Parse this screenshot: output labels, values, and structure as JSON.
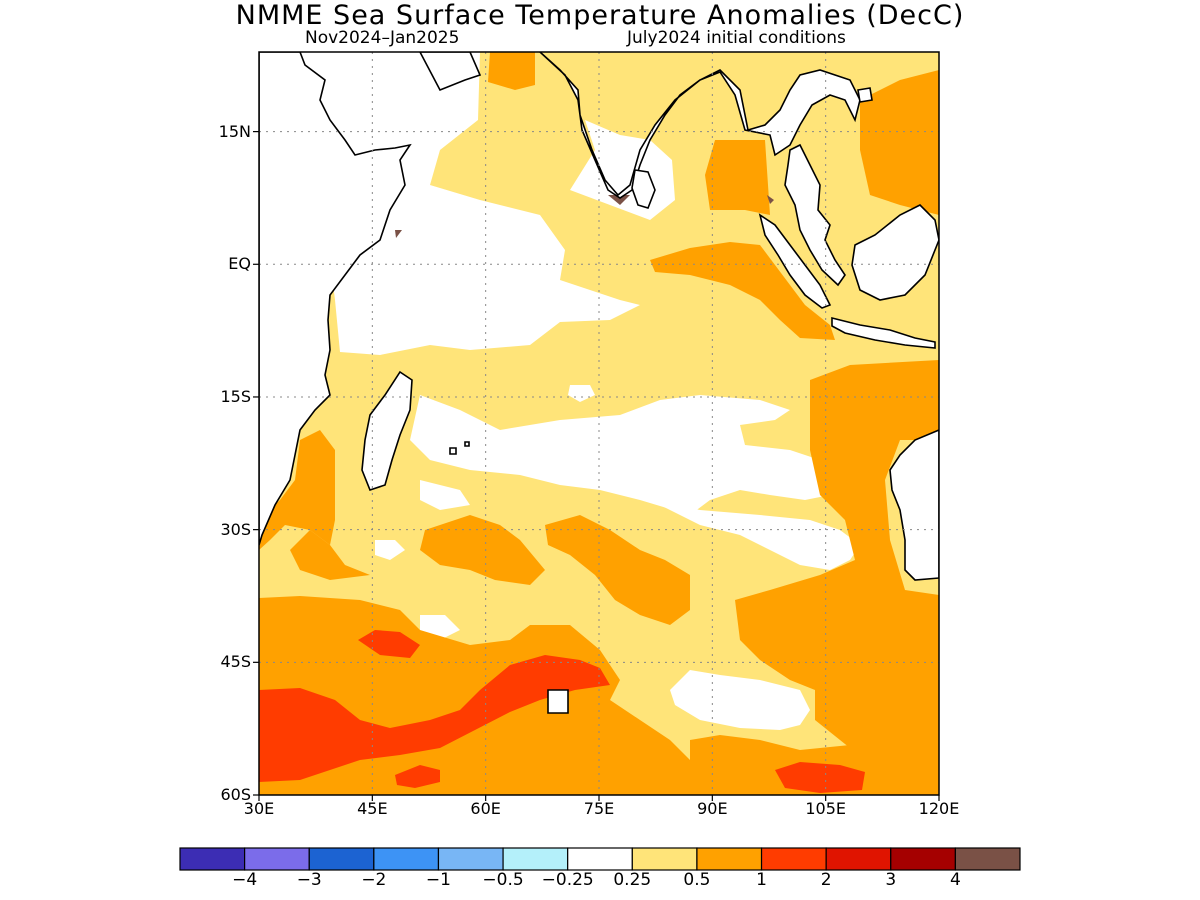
{
  "header": {
    "title": "NMME Sea Surface Temperature Anomalies (DecC)",
    "period": "Nov2024–Jan2025",
    "initial_conditions": "July2024 initial conditions"
  },
  "map": {
    "lat_ticks": [
      "15N",
      "EQ",
      "15S",
      "30S",
      "45S",
      "60S"
    ],
    "lon_ticks": [
      "30E",
      "45E",
      "60E",
      "75E",
      "90E",
      "105E",
      "120E"
    ],
    "lat_values": [
      15,
      0,
      -15,
      -30,
      -45,
      -60
    ],
    "lon_values": [
      30,
      45,
      60,
      75,
      90,
      105,
      120
    ],
    "extent": {
      "lon_min": 30,
      "lon_max": 120,
      "lat_min": -60,
      "lat_max": 24
    },
    "grid": true,
    "land_color": "#ffffff",
    "coast_color": "#000000"
  },
  "colorbar": {
    "colors": [
      "#3c2db4",
      "#7b6cea",
      "#1c63d2",
      "#3d93f5",
      "#78b6f5",
      "#b4f0fa",
      "#ffffff",
      "#ffe479",
      "#ffa100",
      "#ff3c00",
      "#e01400",
      "#a50000",
      "#7a5146"
    ],
    "labels": [
      "−4",
      "−3",
      "−2",
      "−1",
      "−0.5",
      "−0.25",
      "0.25",
      "0.5",
      "1",
      "2",
      "3",
      "4"
    ]
  }
}
